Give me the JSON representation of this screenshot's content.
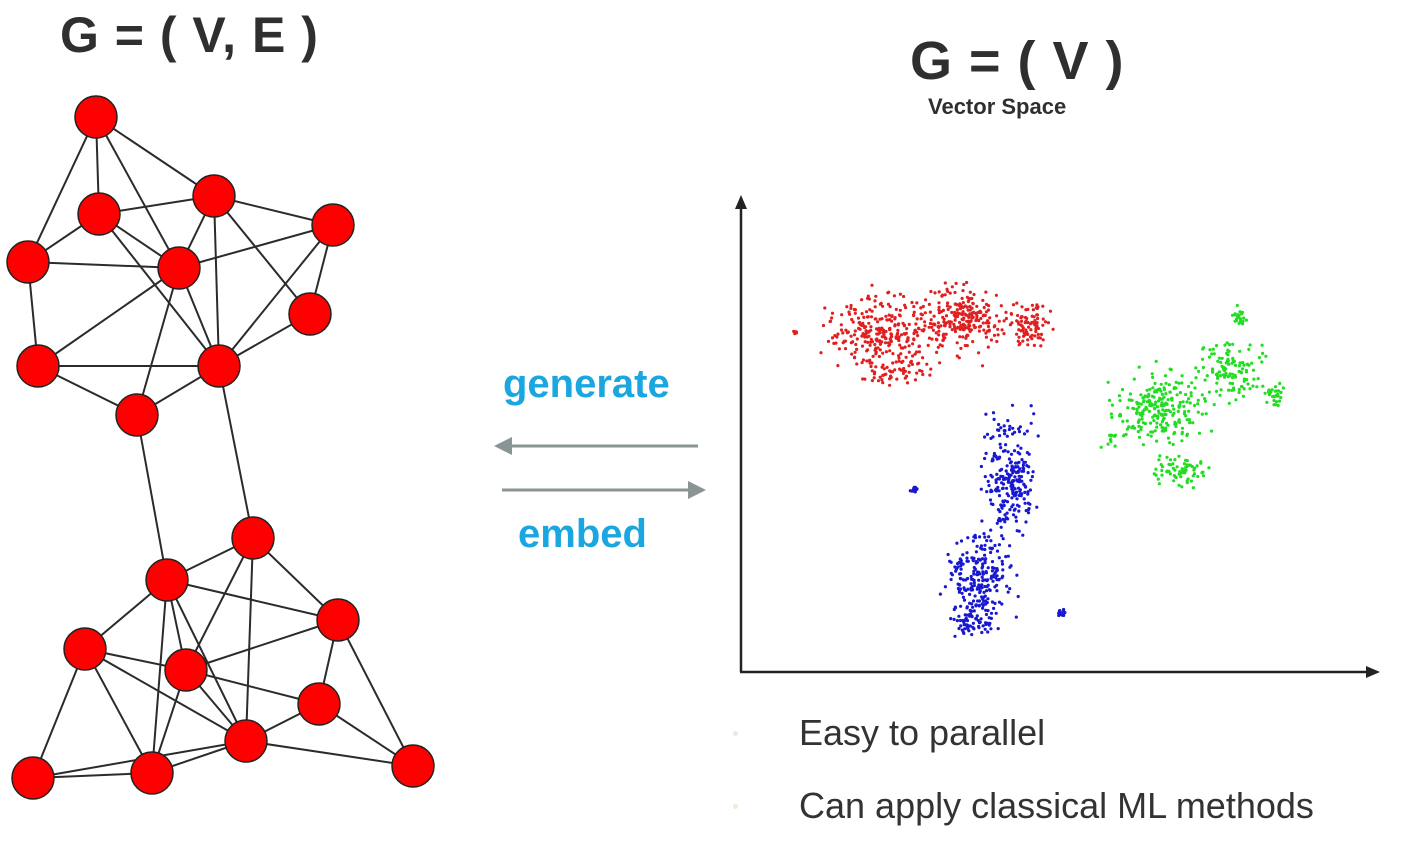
{
  "slide": {
    "graph_title": "G = ( V, E )",
    "vector_title": "G = ( V )",
    "vector_subtitle": "Vector Space",
    "generate_label": "generate",
    "embed_label": "embed",
    "bullets": [
      "Easy to parallel",
      "Can apply classical ML methods"
    ]
  },
  "colors": {
    "node_fill": "#ff0000",
    "edge": "#2b2b2b",
    "arrow_label": "#1aa7e0",
    "arrow_line": "#8a9494",
    "cluster_red": "#e02020",
    "cluster_green": "#22dd22",
    "cluster_blue": "#1818d0"
  },
  "icons": {
    "bullet": "bullet-dot-icon",
    "left_arrow": "left-arrow-icon",
    "right_arrow": "right-arrow-icon"
  }
}
